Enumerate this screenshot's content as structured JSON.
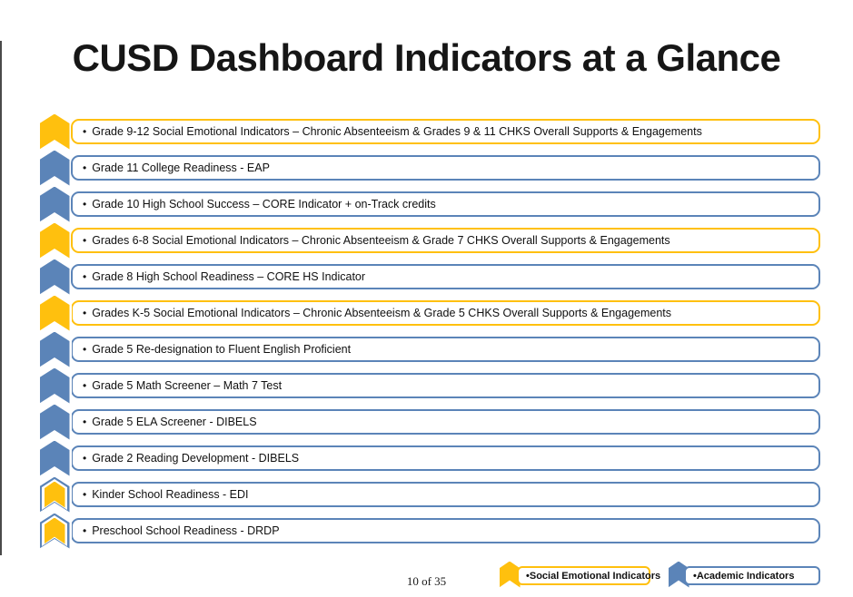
{
  "title": "CUSD Dashboard Indicators at a Glance",
  "page_number": "10 of 35",
  "bullet": "•",
  "colors": {
    "yellow": "#FFC00E",
    "blue": "#5B84B8",
    "white": "#FFFFFF",
    "text": "#101010"
  },
  "rows": [
    {
      "label": "Grade 9-12 Social Emotional Indicators – Chronic Absenteeism & Grades 9 & 11 CHKS Overall Supports & Engagements",
      "chevron": "yellow",
      "border": "yellow",
      "category": "social-emotional"
    },
    {
      "label": "Grade 11 College Readiness - EAP",
      "chevron": "blue",
      "border": "blue",
      "category": "academic"
    },
    {
      "label": "Grade 10 High School Success – CORE Indicator + on-Track credits",
      "chevron": "blue",
      "border": "blue",
      "category": "academic"
    },
    {
      "label": "Grades 6-8 Social Emotional Indicators – Chronic Absenteeism & Grade 7 CHKS Overall Supports & Engagements",
      "chevron": "yellow",
      "border": "yellow",
      "category": "social-emotional"
    },
    {
      "label": "Grade 8 High School Readiness – CORE HS Indicator",
      "chevron": "blue",
      "border": "blue",
      "category": "academic"
    },
    {
      "label": "Grades K-5 Social Emotional Indicators – Chronic Absenteeism & Grade 5 CHKS Overall Supports & Engagements",
      "chevron": "yellow",
      "border": "yellow",
      "category": "social-emotional"
    },
    {
      "label": "Grade 5 Re-designation to Fluent English Proficient",
      "chevron": "blue",
      "border": "blue",
      "category": "academic"
    },
    {
      "label": "Grade 5 Math Screener – Math 7 Test",
      "chevron": "blue",
      "border": "blue",
      "category": "academic"
    },
    {
      "label": "Grade 5 ELA Screener - DIBELS",
      "chevron": "blue",
      "border": "blue",
      "category": "academic"
    },
    {
      "label": "Grade 2 Reading Development - DIBELS",
      "chevron": "blue",
      "border": "blue",
      "category": "academic"
    },
    {
      "label": "Kinder School Readiness - EDI",
      "chevron": "yellow-blue",
      "border": "blue",
      "category": "both"
    },
    {
      "label": "Preschool School Readiness - DRDP",
      "chevron": "yellow-blue",
      "border": "blue",
      "category": "both"
    }
  ],
  "legend": [
    {
      "label": "•Social Emotional Indicators",
      "color": "yellow"
    },
    {
      "label": "•Academic Indicators",
      "color": "blue"
    }
  ]
}
